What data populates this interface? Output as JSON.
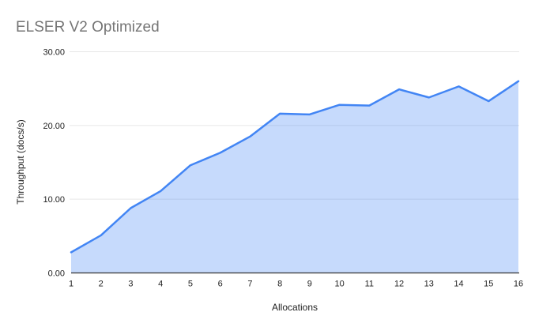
{
  "chart_data": {
    "type": "area",
    "title": "ELSER V2 Optimized",
    "xlabel": "Allocations",
    "ylabel": "Throughput (docs/s)",
    "categories": [
      "1",
      "2",
      "3",
      "4",
      "5",
      "6",
      "7",
      "8",
      "9",
      "10",
      "11",
      "12",
      "13",
      "14",
      "15",
      "16"
    ],
    "series": [
      {
        "name": "Throughput (docs/s)",
        "values": [
          2.8,
          5.1,
          8.8,
          11.1,
          14.6,
          16.3,
          18.5,
          21.6,
          21.5,
          22.8,
          22.7,
          24.9,
          23.8,
          25.3,
          23.3,
          26.0
        ]
      }
    ],
    "ylim": [
      0,
      30
    ],
    "yticks": [
      {
        "value": 0,
        "label": "0.00"
      },
      {
        "value": 10,
        "label": "10.00"
      },
      {
        "value": 20,
        "label": "20.00"
      },
      {
        "value": 30,
        "label": "30.00"
      }
    ],
    "grid": true,
    "legend_position": "none",
    "colors": {
      "line": "#4285f4",
      "fill": "rgba(66,133,244,0.30)",
      "grid": "#e6e6e6",
      "axis": "#333333",
      "tick_text": "#222222",
      "title_text": "#757575"
    }
  }
}
